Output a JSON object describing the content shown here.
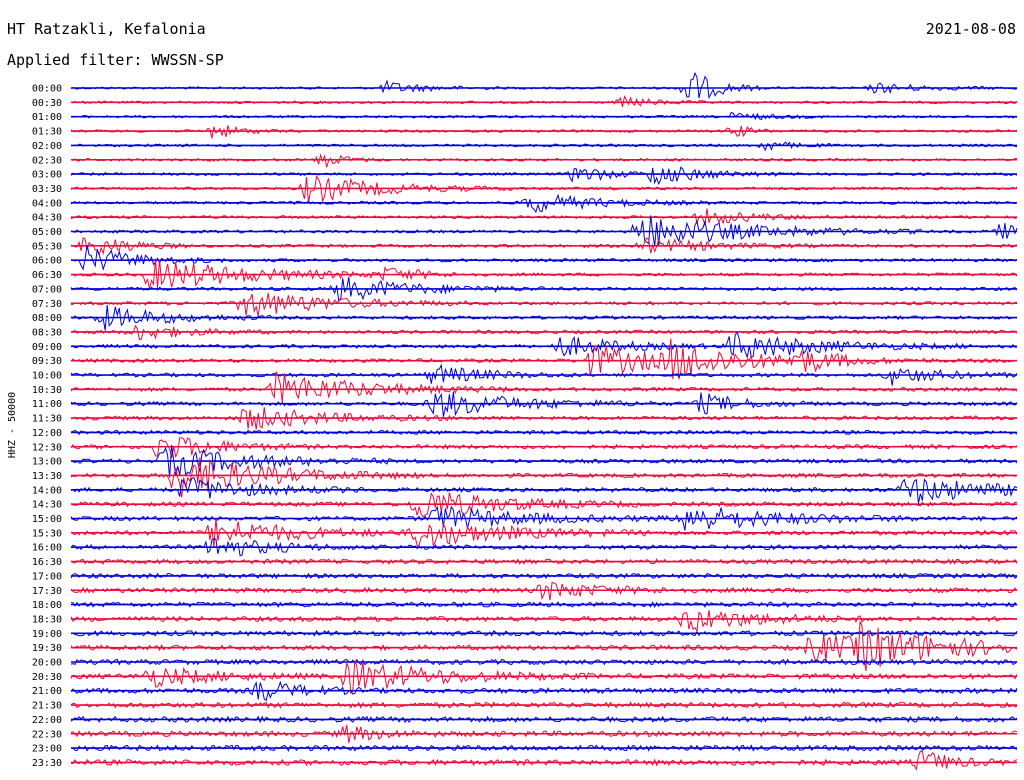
{
  "header": {
    "station": "HT Ratzakli, Kefalonia",
    "date": "2021-08-08",
    "filter": "Applied filter: WWSSN-SP"
  },
  "chart_data": {
    "type": "line",
    "title": "HT Ratzakli, Kefalonia",
    "subtitle": "Applied filter: WWSSN-SP",
    "ylabel": "HHZ - 50000",
    "xlabel": "",
    "grid": false,
    "colors": {
      "even_row": "#0000dd",
      "odd_row": "#ee0a3a"
    },
    "row_labels": [
      "00:00",
      "00:30",
      "01:00",
      "01:30",
      "02:00",
      "02:30",
      "03:00",
      "03:30",
      "04:00",
      "04:30",
      "05:00",
      "05:30",
      "06:00",
      "06:30",
      "07:00",
      "07:30",
      "08:00",
      "08:30",
      "09:00",
      "09:30",
      "10:00",
      "10:30",
      "11:00",
      "11:30",
      "12:00",
      "12:30",
      "13:00",
      "13:30",
      "14:00",
      "14:30",
      "15:00",
      "15:30",
      "16:00",
      "16:30",
      "17:00",
      "17:30",
      "18:00",
      "18:30",
      "19:00",
      "19:30",
      "20:00",
      "20:30",
      "21:00",
      "21:30",
      "22:00",
      "22:30",
      "23:00",
      "23:30"
    ],
    "row_minutes": 30,
    "events": [
      {
        "row": 0,
        "minute": 19.5,
        "amplitude": 22,
        "duration": 0.8
      },
      {
        "row": 0,
        "minute": 10.0,
        "amplitude": 6,
        "duration": 1.2
      },
      {
        "row": 0,
        "minute": 25.5,
        "amplitude": 5,
        "duration": 1.5
      },
      {
        "row": 1,
        "minute": 17.5,
        "amplitude": 5,
        "duration": 1.0
      },
      {
        "row": 2,
        "minute": 21.0,
        "amplitude": 4,
        "duration": 1.0
      },
      {
        "row": 3,
        "minute": 4.5,
        "amplitude": 8,
        "duration": 0.8
      },
      {
        "row": 3,
        "minute": 21.0,
        "amplitude": 7,
        "duration": 0.5
      },
      {
        "row": 4,
        "minute": 22.0,
        "amplitude": 5,
        "duration": 0.8
      },
      {
        "row": 5,
        "minute": 8.0,
        "amplitude": 8,
        "duration": 0.6
      },
      {
        "row": 6,
        "minute": 16.0,
        "amplitude": 9,
        "duration": 1.0
      },
      {
        "row": 6,
        "minute": 18.5,
        "amplitude": 11,
        "duration": 1.4
      },
      {
        "row": 7,
        "minute": 7.5,
        "amplitude": 14,
        "duration": 2.2
      },
      {
        "row": 8,
        "minute": 14.5,
        "amplitude": 10,
        "duration": 2.0
      },
      {
        "row": 9,
        "minute": 20.0,
        "amplitude": 8,
        "duration": 1.5
      },
      {
        "row": 10,
        "minute": 18.0,
        "amplitude": 18,
        "duration": 3.0
      },
      {
        "row": 10,
        "minute": 29.5,
        "amplitude": 8,
        "duration": 0.8
      },
      {
        "row": 11,
        "minute": 0.5,
        "amplitude": 12,
        "duration": 1.2
      },
      {
        "row": 11,
        "minute": 18.0,
        "amplitude": 8,
        "duration": 2.0
      },
      {
        "row": 12,
        "minute": 0.5,
        "amplitude": 14,
        "duration": 1.5
      },
      {
        "row": 13,
        "minute": 2.5,
        "amplitude": 16,
        "duration": 3.0
      },
      {
        "row": 13,
        "minute": 10.0,
        "amplitude": 6,
        "duration": 1.0
      },
      {
        "row": 14,
        "minute": 8.5,
        "amplitude": 12,
        "duration": 2.2
      },
      {
        "row": 15,
        "minute": 5.5,
        "amplitude": 14,
        "duration": 2.4
      },
      {
        "row": 16,
        "minute": 1.0,
        "amplitude": 12,
        "duration": 1.8
      },
      {
        "row": 17,
        "minute": 2.0,
        "amplitude": 8,
        "duration": 1.5
      },
      {
        "row": 18,
        "minute": 15.5,
        "amplitude": 10,
        "duration": 1.8
      },
      {
        "row": 18,
        "minute": 21.0,
        "amplitude": 14,
        "duration": 2.6
      },
      {
        "row": 19,
        "minute": 16.5,
        "amplitude": 16,
        "duration": 2.4
      },
      {
        "row": 19,
        "minute": 19.0,
        "amplitude": 16,
        "duration": 2.0
      },
      {
        "row": 19,
        "minute": 23.0,
        "amplitude": 10,
        "duration": 1.5
      },
      {
        "row": 20,
        "minute": 11.5,
        "amplitude": 10,
        "duration": 1.5
      },
      {
        "row": 20,
        "minute": 26.0,
        "amplitude": 9,
        "duration": 1.5
      },
      {
        "row": 21,
        "minute": 6.5,
        "amplitude": 16,
        "duration": 2.6
      },
      {
        "row": 22,
        "minute": 11.5,
        "amplitude": 14,
        "duration": 2.4
      },
      {
        "row": 22,
        "minute": 20.0,
        "amplitude": 10,
        "duration": 1.2
      },
      {
        "row": 23,
        "minute": 5.5,
        "amplitude": 12,
        "duration": 2.2
      },
      {
        "row": 25,
        "minute": 2.8,
        "amplitude": 14,
        "duration": 1.6
      },
      {
        "row": 26,
        "minute": 3.0,
        "amplitude": 16,
        "duration": 2.4
      },
      {
        "row": 27,
        "minute": 3.3,
        "amplitude": 22,
        "duration": 2.6
      },
      {
        "row": 28,
        "minute": 3.6,
        "amplitude": 12,
        "duration": 2.0
      },
      {
        "row": 28,
        "minute": 26.5,
        "amplitude": 14,
        "duration": 2.4
      },
      {
        "row": 29,
        "minute": 11.0,
        "amplitude": 16,
        "duration": 2.4
      },
      {
        "row": 30,
        "minute": 11.5,
        "amplitude": 12,
        "duration": 2.6
      },
      {
        "row": 30,
        "minute": 19.5,
        "amplitude": 14,
        "duration": 2.6
      },
      {
        "row": 31,
        "minute": 4.5,
        "amplitude": 14,
        "duration": 2.4
      },
      {
        "row": 31,
        "minute": 11.0,
        "amplitude": 14,
        "duration": 2.6
      },
      {
        "row": 32,
        "minute": 4.5,
        "amplitude": 12,
        "duration": 1.5
      },
      {
        "row": 35,
        "minute": 15.0,
        "amplitude": 9,
        "duration": 1.6
      },
      {
        "row": 37,
        "minute": 19.5,
        "amplitude": 12,
        "duration": 2.0
      },
      {
        "row": 39,
        "minute": 23.5,
        "amplitude": 14,
        "duration": 2.6
      },
      {
        "row": 39,
        "minute": 25.0,
        "amplitude": 16,
        "duration": 2.6
      },
      {
        "row": 41,
        "minute": 2.5,
        "amplitude": 10,
        "duration": 1.8
      },
      {
        "row": 41,
        "minute": 8.8,
        "amplitude": 16,
        "duration": 2.6
      },
      {
        "row": 42,
        "minute": 6.0,
        "amplitude": 10,
        "duration": 1.2
      },
      {
        "row": 45,
        "minute": 8.7,
        "amplitude": 8,
        "duration": 1.0
      },
      {
        "row": 47,
        "minute": 27.0,
        "amplitude": 12,
        "duration": 0.8
      }
    ]
  }
}
